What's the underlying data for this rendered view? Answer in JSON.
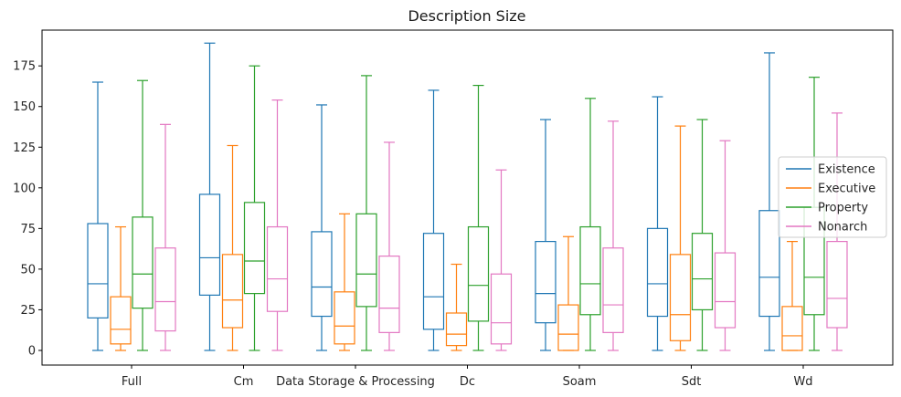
{
  "chart_data": {
    "type": "box",
    "title": "Description Size",
    "xlabel": "",
    "ylabel": "",
    "ylim": [
      -9,
      197
    ],
    "yticks": [
      0,
      25,
      50,
      75,
      100,
      125,
      150,
      175
    ],
    "grid": false,
    "legend_position": "center-right",
    "categories": [
      "Full",
      "Cm",
      "Data Storage & Processing",
      "Dc",
      "Soam",
      "Sdt",
      "Wd"
    ],
    "series": [
      {
        "name": "Existence",
        "color": "#1f77b4",
        "boxes": [
          {
            "min": 0,
            "q1": 20,
            "median": 41,
            "q3": 78,
            "max": 165
          },
          {
            "min": 0,
            "q1": 34,
            "median": 57,
            "q3": 96,
            "max": 189
          },
          {
            "min": 0,
            "q1": 21,
            "median": 39,
            "q3": 73,
            "max": 151
          },
          {
            "min": 0,
            "q1": 13,
            "median": 33,
            "q3": 72,
            "max": 160
          },
          {
            "min": 0,
            "q1": 17,
            "median": 35,
            "q3": 67,
            "max": 142
          },
          {
            "min": 0,
            "q1": 21,
            "median": 41,
            "q3": 75,
            "max": 156
          },
          {
            "min": 0,
            "q1": 21,
            "median": 45,
            "q3": 86,
            "max": 183
          }
        ]
      },
      {
        "name": "Executive",
        "color": "#ff7f0e",
        "boxes": [
          {
            "min": 0,
            "q1": 4,
            "median": 13,
            "q3": 33,
            "max": 76
          },
          {
            "min": 0,
            "q1": 14,
            "median": 31,
            "q3": 59,
            "max": 126
          },
          {
            "min": 0,
            "q1": 4,
            "median": 15,
            "q3": 36,
            "max": 84
          },
          {
            "min": 0,
            "q1": 3,
            "median": 10,
            "q3": 23,
            "max": 53
          },
          {
            "min": 0,
            "q1": 0,
            "median": 10,
            "q3": 28,
            "max": 70
          },
          {
            "min": 0,
            "q1": 6,
            "median": 22,
            "q3": 59,
            "max": 138
          },
          {
            "min": 0,
            "q1": 0,
            "median": 9,
            "q3": 27,
            "max": 67
          }
        ]
      },
      {
        "name": "Property",
        "color": "#2ca02c",
        "boxes": [
          {
            "min": 0,
            "q1": 26,
            "median": 47,
            "q3": 82,
            "max": 166
          },
          {
            "min": 0,
            "q1": 35,
            "median": 55,
            "q3": 91,
            "max": 175
          },
          {
            "min": 0,
            "q1": 27,
            "median": 47,
            "q3": 84,
            "max": 169
          },
          {
            "min": 0,
            "q1": 18,
            "median": 40,
            "q3": 76,
            "max": 163
          },
          {
            "min": 0,
            "q1": 22,
            "median": 41,
            "q3": 76,
            "max": 155
          },
          {
            "min": 0,
            "q1": 25,
            "median": 44,
            "q3": 72,
            "max": 142
          },
          {
            "min": 0,
            "q1": 22,
            "median": 45,
            "q3": 88,
            "max": 168
          }
        ]
      },
      {
        "name": "Nonarch",
        "color": "#e377c2",
        "boxes": [
          {
            "min": 0,
            "q1": 12,
            "median": 30,
            "q3": 63,
            "max": 139
          },
          {
            "min": 0,
            "q1": 24,
            "median": 44,
            "q3": 76,
            "max": 154
          },
          {
            "min": 0,
            "q1": 11,
            "median": 26,
            "q3": 58,
            "max": 128
          },
          {
            "min": 0,
            "q1": 4,
            "median": 17,
            "q3": 47,
            "max": 111
          },
          {
            "min": 0,
            "q1": 11,
            "median": 28,
            "q3": 63,
            "max": 141
          },
          {
            "min": 0,
            "q1": 14,
            "median": 30,
            "q3": 60,
            "max": 129
          },
          {
            "min": 0,
            "q1": 14,
            "median": 32,
            "q3": 67,
            "max": 146
          }
        ]
      }
    ]
  }
}
